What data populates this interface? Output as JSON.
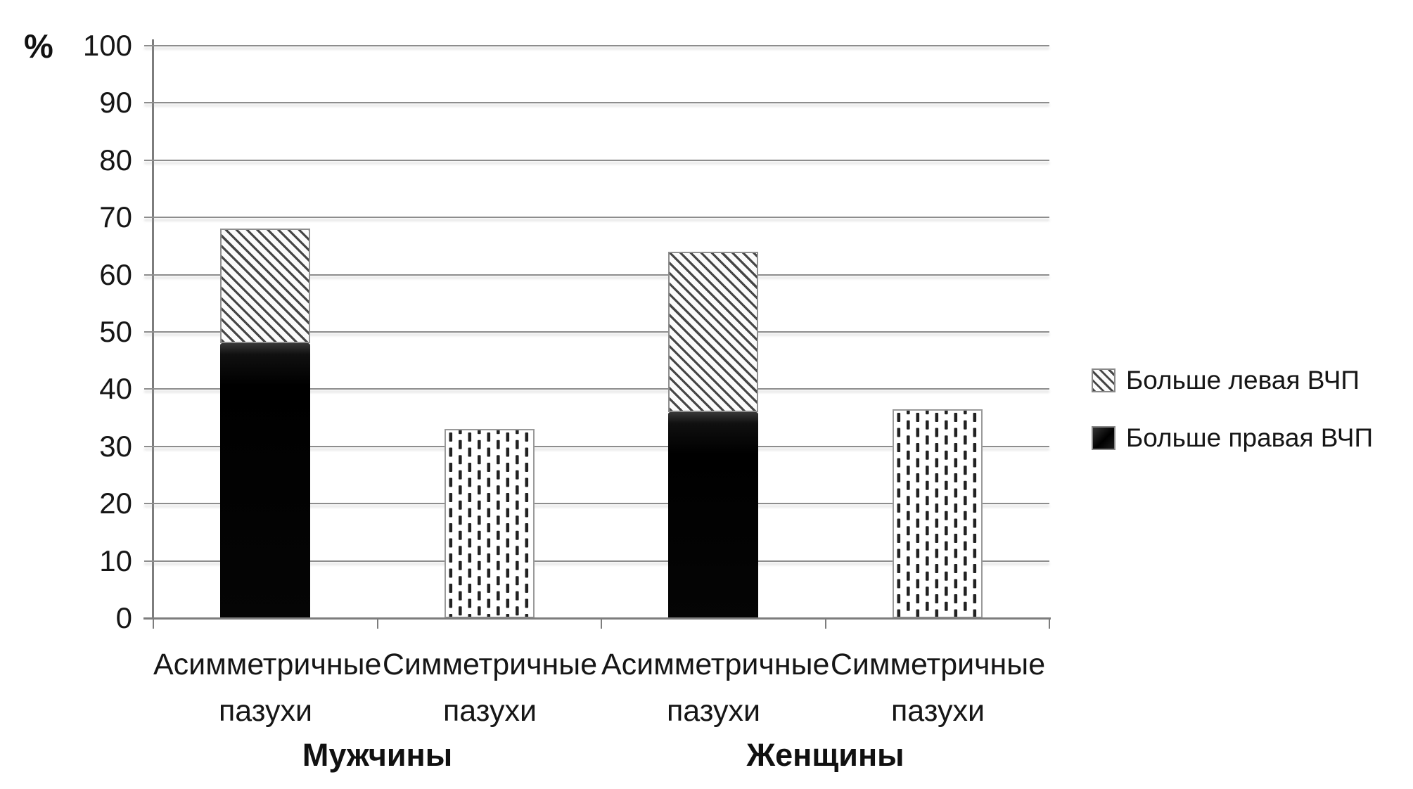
{
  "chart_data": {
    "type": "bar",
    "stacked": true,
    "title": "",
    "xlabel": "",
    "ylabel": "%",
    "ylim": [
      0,
      100
    ],
    "ytick_step": 10,
    "yticks": [
      0,
      10,
      20,
      30,
      40,
      50,
      60,
      70,
      80,
      90,
      100
    ],
    "grid": true,
    "legend_position": "right",
    "legend": [
      {
        "label": "Больше левая ВЧП",
        "pattern": "diagonal-hatch"
      },
      {
        "label": "Больше правая ВЧП",
        "pattern": "solid-black"
      }
    ],
    "groups": [
      {
        "label": "Мужчины",
        "bars": [
          {
            "category": "Асимметричные пазухи",
            "total": 68,
            "segments": [
              {
                "series": "Больше правая ВЧП",
                "value": 48,
                "pattern": "solid-black"
              },
              {
                "series": "Больше левая ВЧП",
                "value": 20,
                "pattern": "diagonal-hatch"
              }
            ]
          },
          {
            "category": "Симметричные пазухи",
            "total": 33,
            "segments": [
              {
                "series": "Симметричные пазухи",
                "value": 33,
                "pattern": "vertical-dashes"
              }
            ]
          }
        ]
      },
      {
        "label": "Женщины",
        "bars": [
          {
            "category": "Асимметричные пазухи",
            "total": 64,
            "segments": [
              {
                "series": "Больше правая ВЧП",
                "value": 36,
                "pattern": "solid-black"
              },
              {
                "series": "Больше левая ВЧП",
                "value": 28,
                "pattern": "diagonal-hatch"
              }
            ]
          },
          {
            "category": "Симметричные пазухи",
            "total": 36.5,
            "segments": [
              {
                "series": "Симметричные пазухи",
                "value": 36.5,
                "pattern": "vertical-dashes"
              }
            ]
          }
        ]
      }
    ]
  },
  "colors": {
    "background": "#ffffff",
    "text": "#1a1a1a",
    "axis": "#7d7d7d",
    "gridline": "#8d8d8d",
    "bar_black": "#0a0a0a",
    "hatch_stroke": "#464646",
    "dash_stroke": "#222222",
    "pattern_border": "#9a9a9a"
  }
}
